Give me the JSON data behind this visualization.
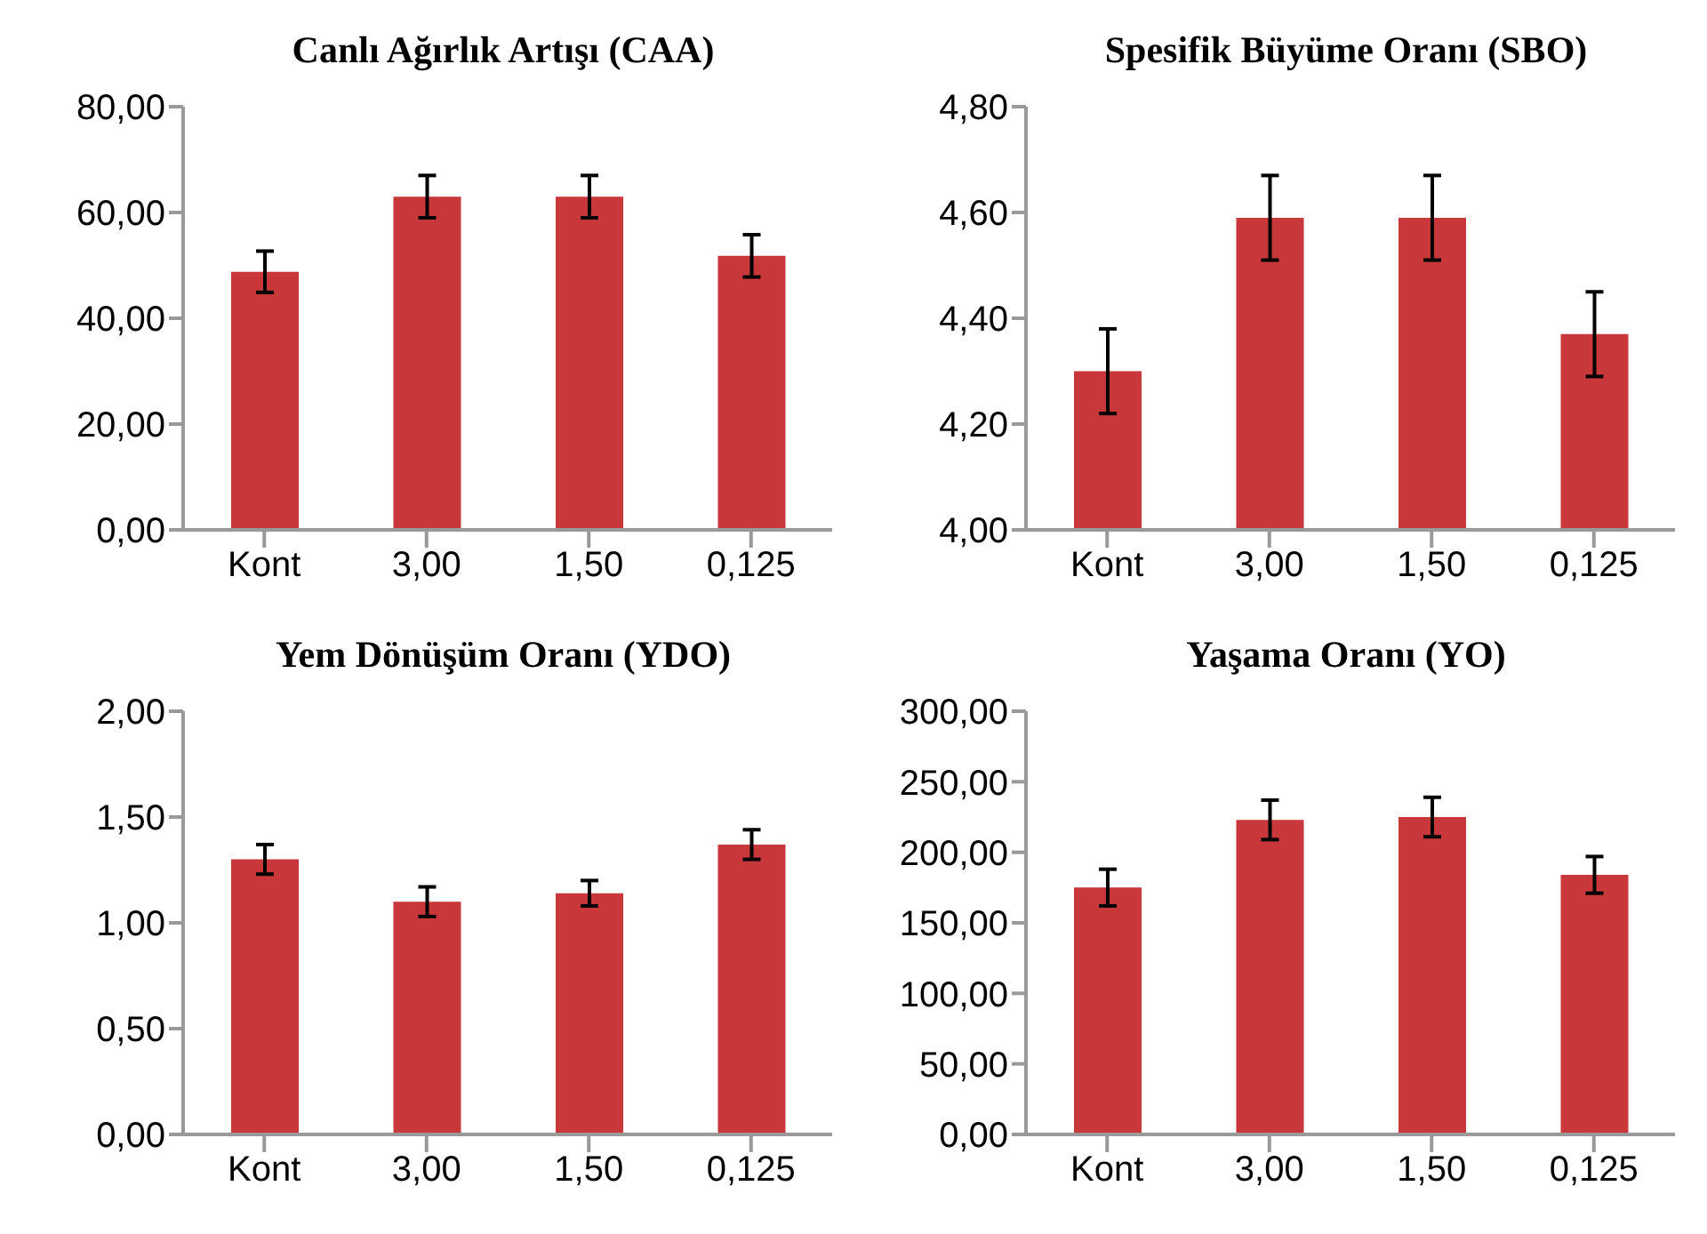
{
  "chart_data": [
    {
      "type": "bar",
      "title": "Canlı Ağırlık Artışı (CAA)",
      "categories": [
        "Kont",
        "3,00",
        "1,50",
        "0,125"
      ],
      "values": [
        48.8,
        63.0,
        63.0,
        51.8
      ],
      "errors": [
        3.9,
        4.0,
        4.0,
        4.0
      ],
      "color": "#c8383a",
      "ylim": [
        0,
        80
      ],
      "yticks": [
        {
          "value": 0,
          "label": "0,00"
        },
        {
          "value": 20,
          "label": "20,00"
        },
        {
          "value": 40,
          "label": "40,00"
        },
        {
          "value": 60,
          "label": "60,00"
        },
        {
          "value": 80,
          "label": "80,00"
        }
      ],
      "grid": false,
      "legend": false
    },
    {
      "type": "bar",
      "title": "Spesifik Büyüme Oranı (SBO)",
      "categories": [
        "Kont",
        "3,00",
        "1,50",
        "0,125"
      ],
      "values": [
        4.3,
        4.59,
        4.59,
        4.37
      ],
      "errors": [
        0.08,
        0.08,
        0.08,
        0.08
      ],
      "color": "#c8383a",
      "ylim": [
        4,
        4.8
      ],
      "yticks": [
        {
          "value": 4,
          "label": "4,00"
        },
        {
          "value": 4.2,
          "label": "4,20"
        },
        {
          "value": 4.4,
          "label": "4,40"
        },
        {
          "value": 4.6,
          "label": "4,60"
        },
        {
          "value": 4.8,
          "label": "4,80"
        }
      ],
      "grid": false,
      "legend": false
    },
    {
      "type": "bar",
      "title": "Yem Dönüşüm Oranı (YDO)",
      "categories": [
        "Kont",
        "3,00",
        "1,50",
        "0,125"
      ],
      "values": [
        1.3,
        1.1,
        1.14,
        1.37
      ],
      "errors": [
        0.07,
        0.07,
        0.06,
        0.07
      ],
      "color": "#c8383a",
      "ylim": [
        0,
        2
      ],
      "yticks": [
        {
          "value": 0,
          "label": "0,00"
        },
        {
          "value": 0.5,
          "label": "0,50"
        },
        {
          "value": 1,
          "label": "1,00"
        },
        {
          "value": 1.5,
          "label": "1,50"
        },
        {
          "value": 2,
          "label": "2,00"
        }
      ],
      "grid": false,
      "legend": false
    },
    {
      "type": "bar",
      "title": "Yaşama Oranı (YO)",
      "categories": [
        "Kont",
        "3,00",
        "1,50",
        "0,125"
      ],
      "values": [
        175,
        223,
        225,
        184
      ],
      "errors": [
        13,
        14,
        14,
        13
      ],
      "color": "#c8383a",
      "ylim": [
        0,
        300
      ],
      "yticks": [
        {
          "value": 0,
          "label": "0,00"
        },
        {
          "value": 50,
          "label": "50,00"
        },
        {
          "value": 100,
          "label": "100,00"
        },
        {
          "value": 150,
          "label": "150,00"
        },
        {
          "value": 200,
          "label": "200,00"
        },
        {
          "value": 250,
          "label": "250,00"
        },
        {
          "value": 300,
          "label": "300,00"
        }
      ],
      "grid": false,
      "legend": false
    }
  ]
}
